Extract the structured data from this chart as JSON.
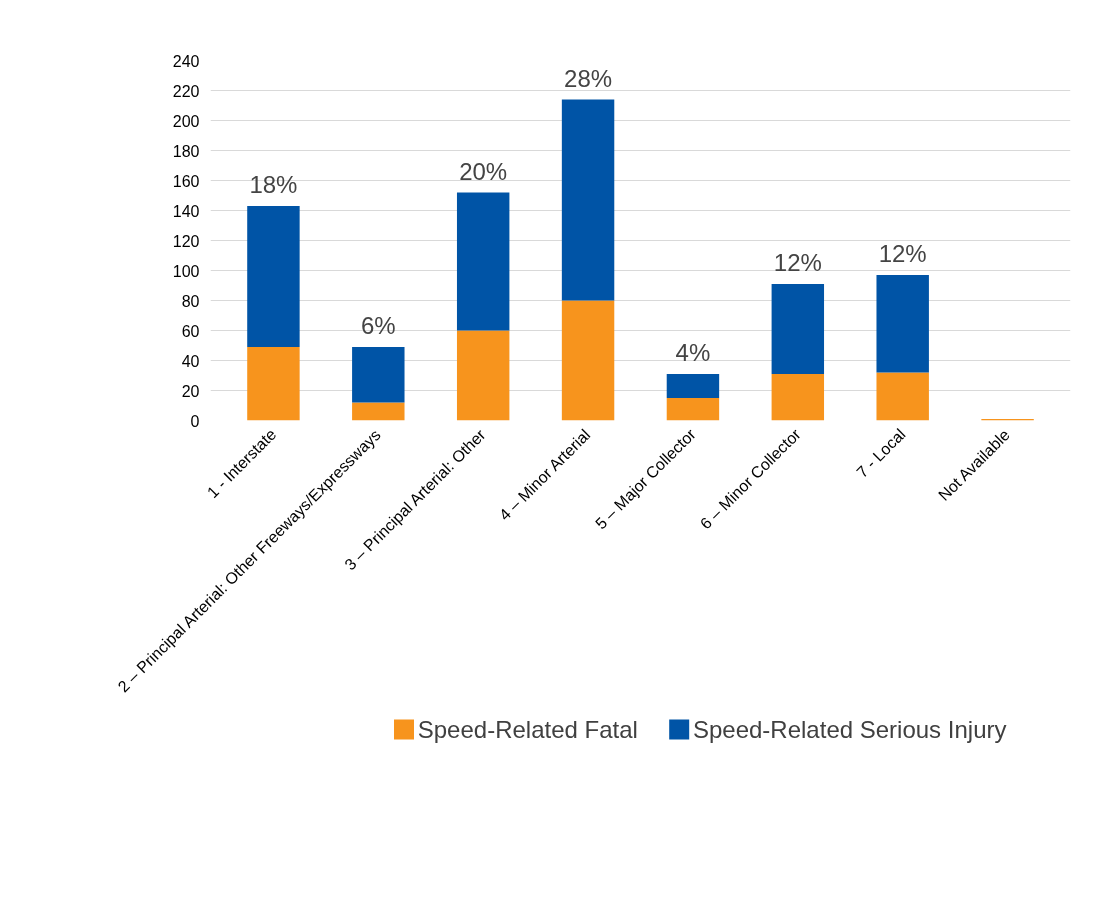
{
  "chart_data": {
    "type": "bar",
    "stacked": true,
    "categories": [
      "1 - Interstate",
      "2 – Principal Arterial: Other Freeways/Expressways",
      "3 – Principal Arterial: Other",
      "4 – Minor Arterial",
      "5 – Major Collector",
      "6 – Minor Collector",
      "7 - Local",
      "Not Available"
    ],
    "series": [
      {
        "name": "Speed-Related Fatal",
        "color": "#f7941d",
        "values": [
          49,
          12,
          60,
          80,
          15,
          31,
          32,
          1
        ]
      },
      {
        "name": "Speed-Related Serious Injury",
        "color": "#0054a6",
        "values": [
          94,
          37,
          92,
          134,
          16,
          60,
          65,
          0
        ]
      }
    ],
    "ylim": [
      0,
      240
    ],
    "yticks": [
      0,
      20,
      40,
      60,
      80,
      100,
      120,
      140,
      160,
      180,
      200,
      220,
      240
    ],
    "grid": "y",
    "legend": "bottom",
    "annotations": [
      {
        "text": "18%",
        "x": "1 - Interstate",
        "y": 143
      },
      {
        "text": "6%",
        "x": "2 – Principal Arterial: Other Freeways/Expressways",
        "y": 49
      },
      {
        "text": "20%",
        "x": "3 – Principal Arterial: Other",
        "y": 152
      },
      {
        "text": "28%",
        "x": "4 – Minor Arterial",
        "y": 214
      },
      {
        "text": "4%",
        "x": "5 – Major Collector",
        "y": 31
      },
      {
        "text": "12%",
        "x": "6 – Minor Collector",
        "y": 91
      },
      {
        "text": "12%",
        "x": "7 - Local",
        "y": 97
      }
    ]
  }
}
